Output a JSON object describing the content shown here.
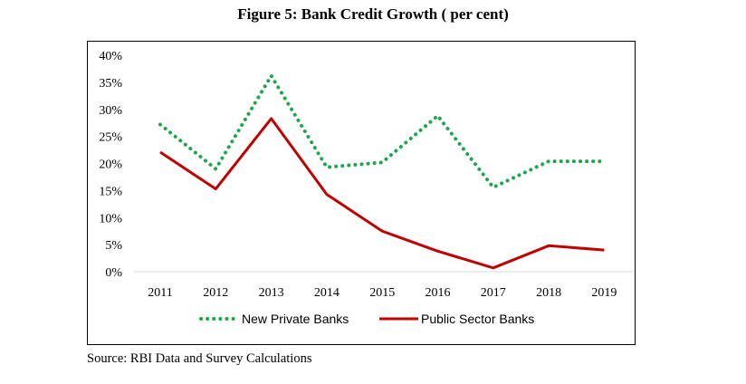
{
  "page": {
    "title": "Figure 5: Bank Credit Growth ( per cent)",
    "source": "Source: RBI Data and Survey Calculations"
  },
  "chart_data": {
    "type": "line",
    "title": "Figure 5: Bank Credit Growth ( per cent)",
    "x": [
      "2011",
      "2012",
      "2013",
      "2014",
      "2015",
      "2016",
      "2017",
      "2018",
      "2019"
    ],
    "ylim": [
      0,
      40
    ],
    "y_ticks": [
      "0%",
      "5%",
      "10%",
      "15%",
      "20%",
      "25%",
      "30%",
      "35%",
      "40%"
    ],
    "grid": false,
    "legend_position": "bottom",
    "series": [
      {
        "name": "New Private Banks",
        "color": "#1fa64a",
        "style": "dotted",
        "values": [
          27.2,
          19.0,
          36.2,
          19.3,
          20.2,
          28.8,
          15.6,
          20.4,
          20.4
        ]
      },
      {
        "name": "Public Sector Banks",
        "color": "#c00000",
        "style": "solid",
        "values": [
          22.1,
          15.3,
          28.3,
          14.3,
          7.5,
          3.8,
          0.7,
          4.8,
          4.0
        ]
      }
    ]
  }
}
